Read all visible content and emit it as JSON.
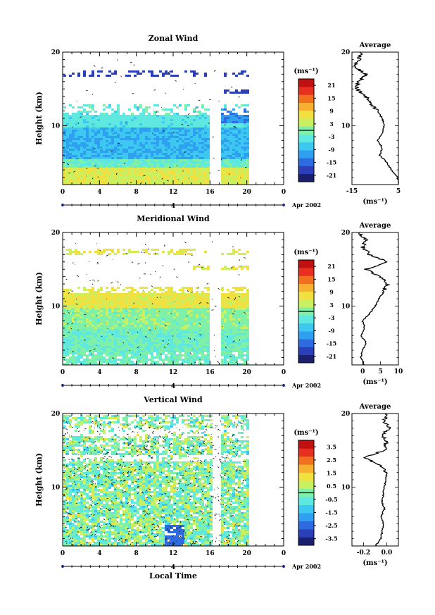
{
  "chart_data": [
    {
      "type": "heatmap",
      "title": "Zonal Wind",
      "ylabel": "Height (km)",
      "yticks": [
        "20",
        "10"
      ],
      "xticks": [
        "0",
        "4",
        "8",
        "12",
        "16",
        "20",
        "0"
      ],
      "date_tick": "4",
      "date_label": "Apr 2002",
      "colorbar": {
        "unit": "(ms⁻¹)",
        "ticks": [
          "21",
          "15",
          "9",
          "3",
          "-3",
          "-9",
          "-15",
          "-21"
        ],
        "range": [
          -24,
          24
        ]
      },
      "gaps_hours": [
        [
          15.9,
          16.0
        ]
      ],
      "profile": {
        "title": "Average",
        "xticks": [
          "-15",
          "5"
        ],
        "xlabel": "(ms⁻¹)",
        "yticks": [
          "20",
          "10"
        ],
        "xlim": [
          -15,
          5
        ],
        "heights_km": [
          2,
          3,
          4,
          5,
          6,
          7,
          8,
          9,
          10,
          11,
          12,
          13,
          14,
          15,
          16,
          17,
          18,
          19,
          20
        ],
        "values": [
          5.5,
          4.5,
          2,
          0,
          -3,
          -2,
          -4,
          -2,
          -1,
          -2,
          -4,
          -7,
          -9,
          -13,
          -12,
          -9,
          -14,
          -12,
          -11
        ]
      }
    },
    {
      "type": "heatmap",
      "title": "Meridional Wind",
      "ylabel": "Height (km)",
      "yticks": [
        "20",
        "10"
      ],
      "xticks": [
        "0",
        "4",
        "8",
        "12",
        "16",
        "20",
        "0"
      ],
      "date_tick": "4",
      "date_label": "Apr 2002",
      "colorbar": {
        "unit": "(ms⁻¹)",
        "ticks": [
          "21",
          "15",
          "9",
          "3",
          "-3",
          "-9",
          "-15",
          "-21"
        ],
        "range": [
          -24,
          24
        ]
      },
      "profile": {
        "title": "Average",
        "xticks": [
          "0",
          "5",
          "10"
        ],
        "xlabel": "(ms⁻¹)",
        "yticks": [
          "20",
          "10"
        ],
        "xlim": [
          -3,
          10
        ],
        "heights_km": [
          2,
          3,
          4,
          5,
          6,
          7,
          8,
          9,
          10,
          11,
          12,
          13,
          14,
          15,
          16,
          17,
          18,
          19,
          20
        ],
        "values": [
          0.5,
          -0.5,
          0,
          1,
          -0.5,
          0.5,
          0,
          2,
          3.5,
          4.5,
          6,
          7,
          5,
          1,
          7,
          2,
          0,
          1,
          -1
        ]
      }
    },
    {
      "type": "heatmap",
      "title": "Vertical Wind",
      "ylabel": "Height (km)",
      "xlabel": "Local Time",
      "yticks": [
        "20",
        "10"
      ],
      "xticks": [
        "0",
        "4",
        "8",
        "12",
        "16",
        "20",
        "0"
      ],
      "date_tick": "4",
      "date_label": "Apr 2002",
      "colorbar": {
        "unit": "(ms⁻¹)",
        "ticks": [
          "3.5",
          "2.5",
          "1.5",
          "0.5",
          "-0.5",
          "-1.5",
          "-2.5",
          "-3.5"
        ],
        "range": [
          -4,
          4
        ]
      },
      "profile": {
        "title": "Average",
        "xticks": [
          "-0.2",
          "0.0"
        ],
        "xlabel": "(ms⁻¹)",
        "yticks": [
          "20",
          "10"
        ],
        "xlim": [
          -0.3,
          0.1
        ],
        "heights_km": [
          2,
          3,
          4,
          5,
          6,
          7,
          8,
          9,
          10,
          11,
          12,
          13,
          14,
          15,
          16,
          17,
          18,
          19,
          20
        ],
        "values": [
          -0.1,
          -0.05,
          -0.04,
          -0.03,
          -0.05,
          -0.02,
          -0.04,
          -0.03,
          -0.02,
          -0.01,
          0.0,
          -0.05,
          -0.2,
          -0.02,
          0.0,
          -0.04,
          0.02,
          -0.03,
          0.01
        ]
      }
    }
  ]
}
